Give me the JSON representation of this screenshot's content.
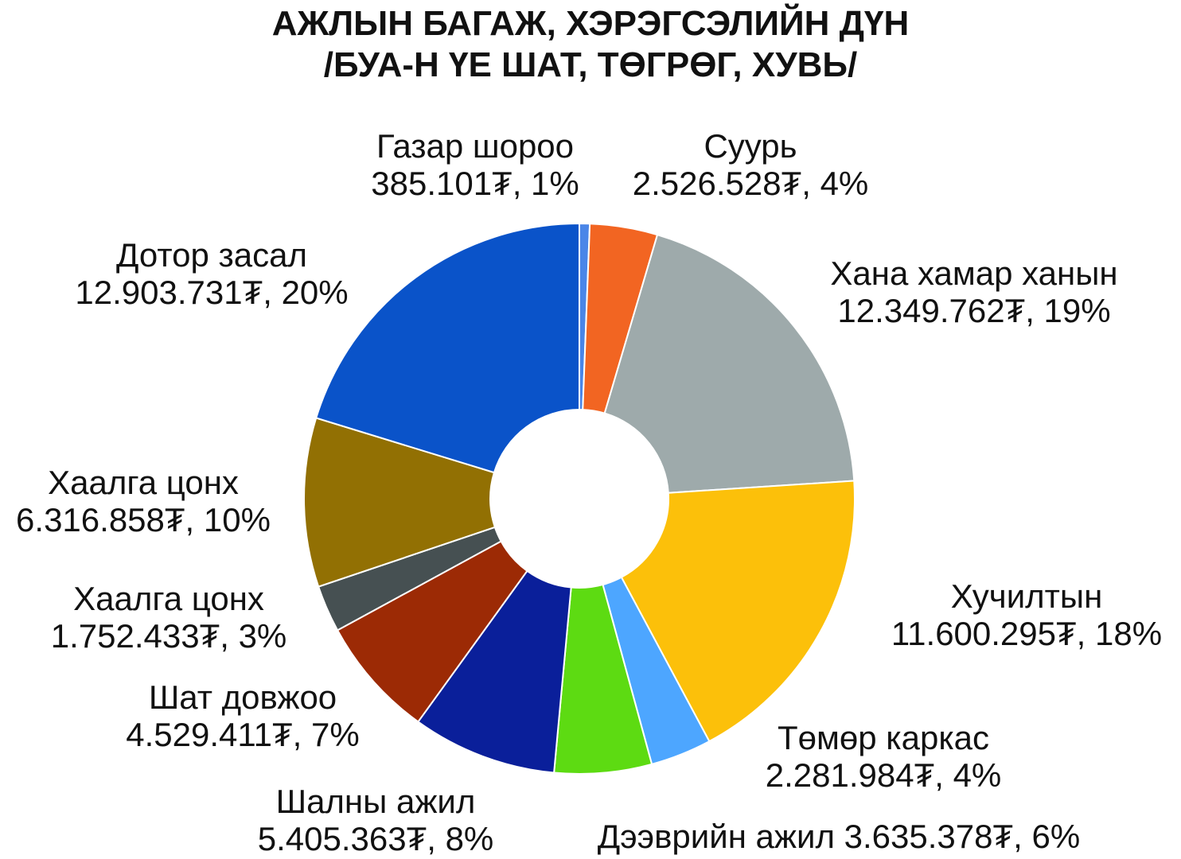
{
  "chart_data": {
    "type": "pie",
    "donut": true,
    "title": "АЖЛЫН БАГАЖ, ХЭРЭГСЭЛИЙН ДҮН",
    "subtitle": "/БУА-Н ҮЕ ШАТ, ТӨГРӨГ, ХУВЬ/",
    "slices": [
      {
        "label": "Газар шороо",
        "value": 385101,
        "value_text": "385.101₮, 1%",
        "percent": 1,
        "color": "#4a86e8"
      },
      {
        "label": "Суурь",
        "value": 2526528,
        "value_text": "2.526.528₮, 4%",
        "percent": 4,
        "color": "#f26522"
      },
      {
        "label": "Хана хамар ханын",
        "value": 12349762,
        "value_text": "12.349.762₮, 19%",
        "percent": 19,
        "color": "#9eaaab"
      },
      {
        "label": "Хучилтын",
        "value": 11600295,
        "value_text": "11.600.295₮, 18%",
        "percent": 18,
        "color": "#fcc00a"
      },
      {
        "label": "Төмөр каркас",
        "value": 2281984,
        "value_text": "2.281.984₮, 4%",
        "percent": 4,
        "color": "#4da6ff"
      },
      {
        "label": "Дээврийн ажил",
        "value": 3635378,
        "value_text": "3.635.378₮, 6%",
        "percent": 6,
        "color": "#5ddb12"
      },
      {
        "label": "Шалны ажил",
        "value": 5405363,
        "value_text": "5.405.363₮, 8%",
        "percent": 8,
        "color": "#0a1f9a"
      },
      {
        "label": "Шат довжоо",
        "value": 4529411,
        "value_text": "4.529.411₮, 7%",
        "percent": 7,
        "color": "#9c2a05"
      },
      {
        "label": "Хаалга цонх",
        "value": 1752433,
        "value_text": "1.752.433₮, 3%",
        "percent": 3,
        "color": "#465052"
      },
      {
        "label": "Хаалга цонх",
        "value": 6316858,
        "value_text": "6.316.858₮, 10%",
        "percent": 10,
        "color": "#927003"
      },
      {
        "label": "Дотор засал",
        "value": 12903731,
        "value_text": "12.903.731₮, 20%",
        "percent": 20,
        "color": "#0a53c9"
      }
    ]
  }
}
